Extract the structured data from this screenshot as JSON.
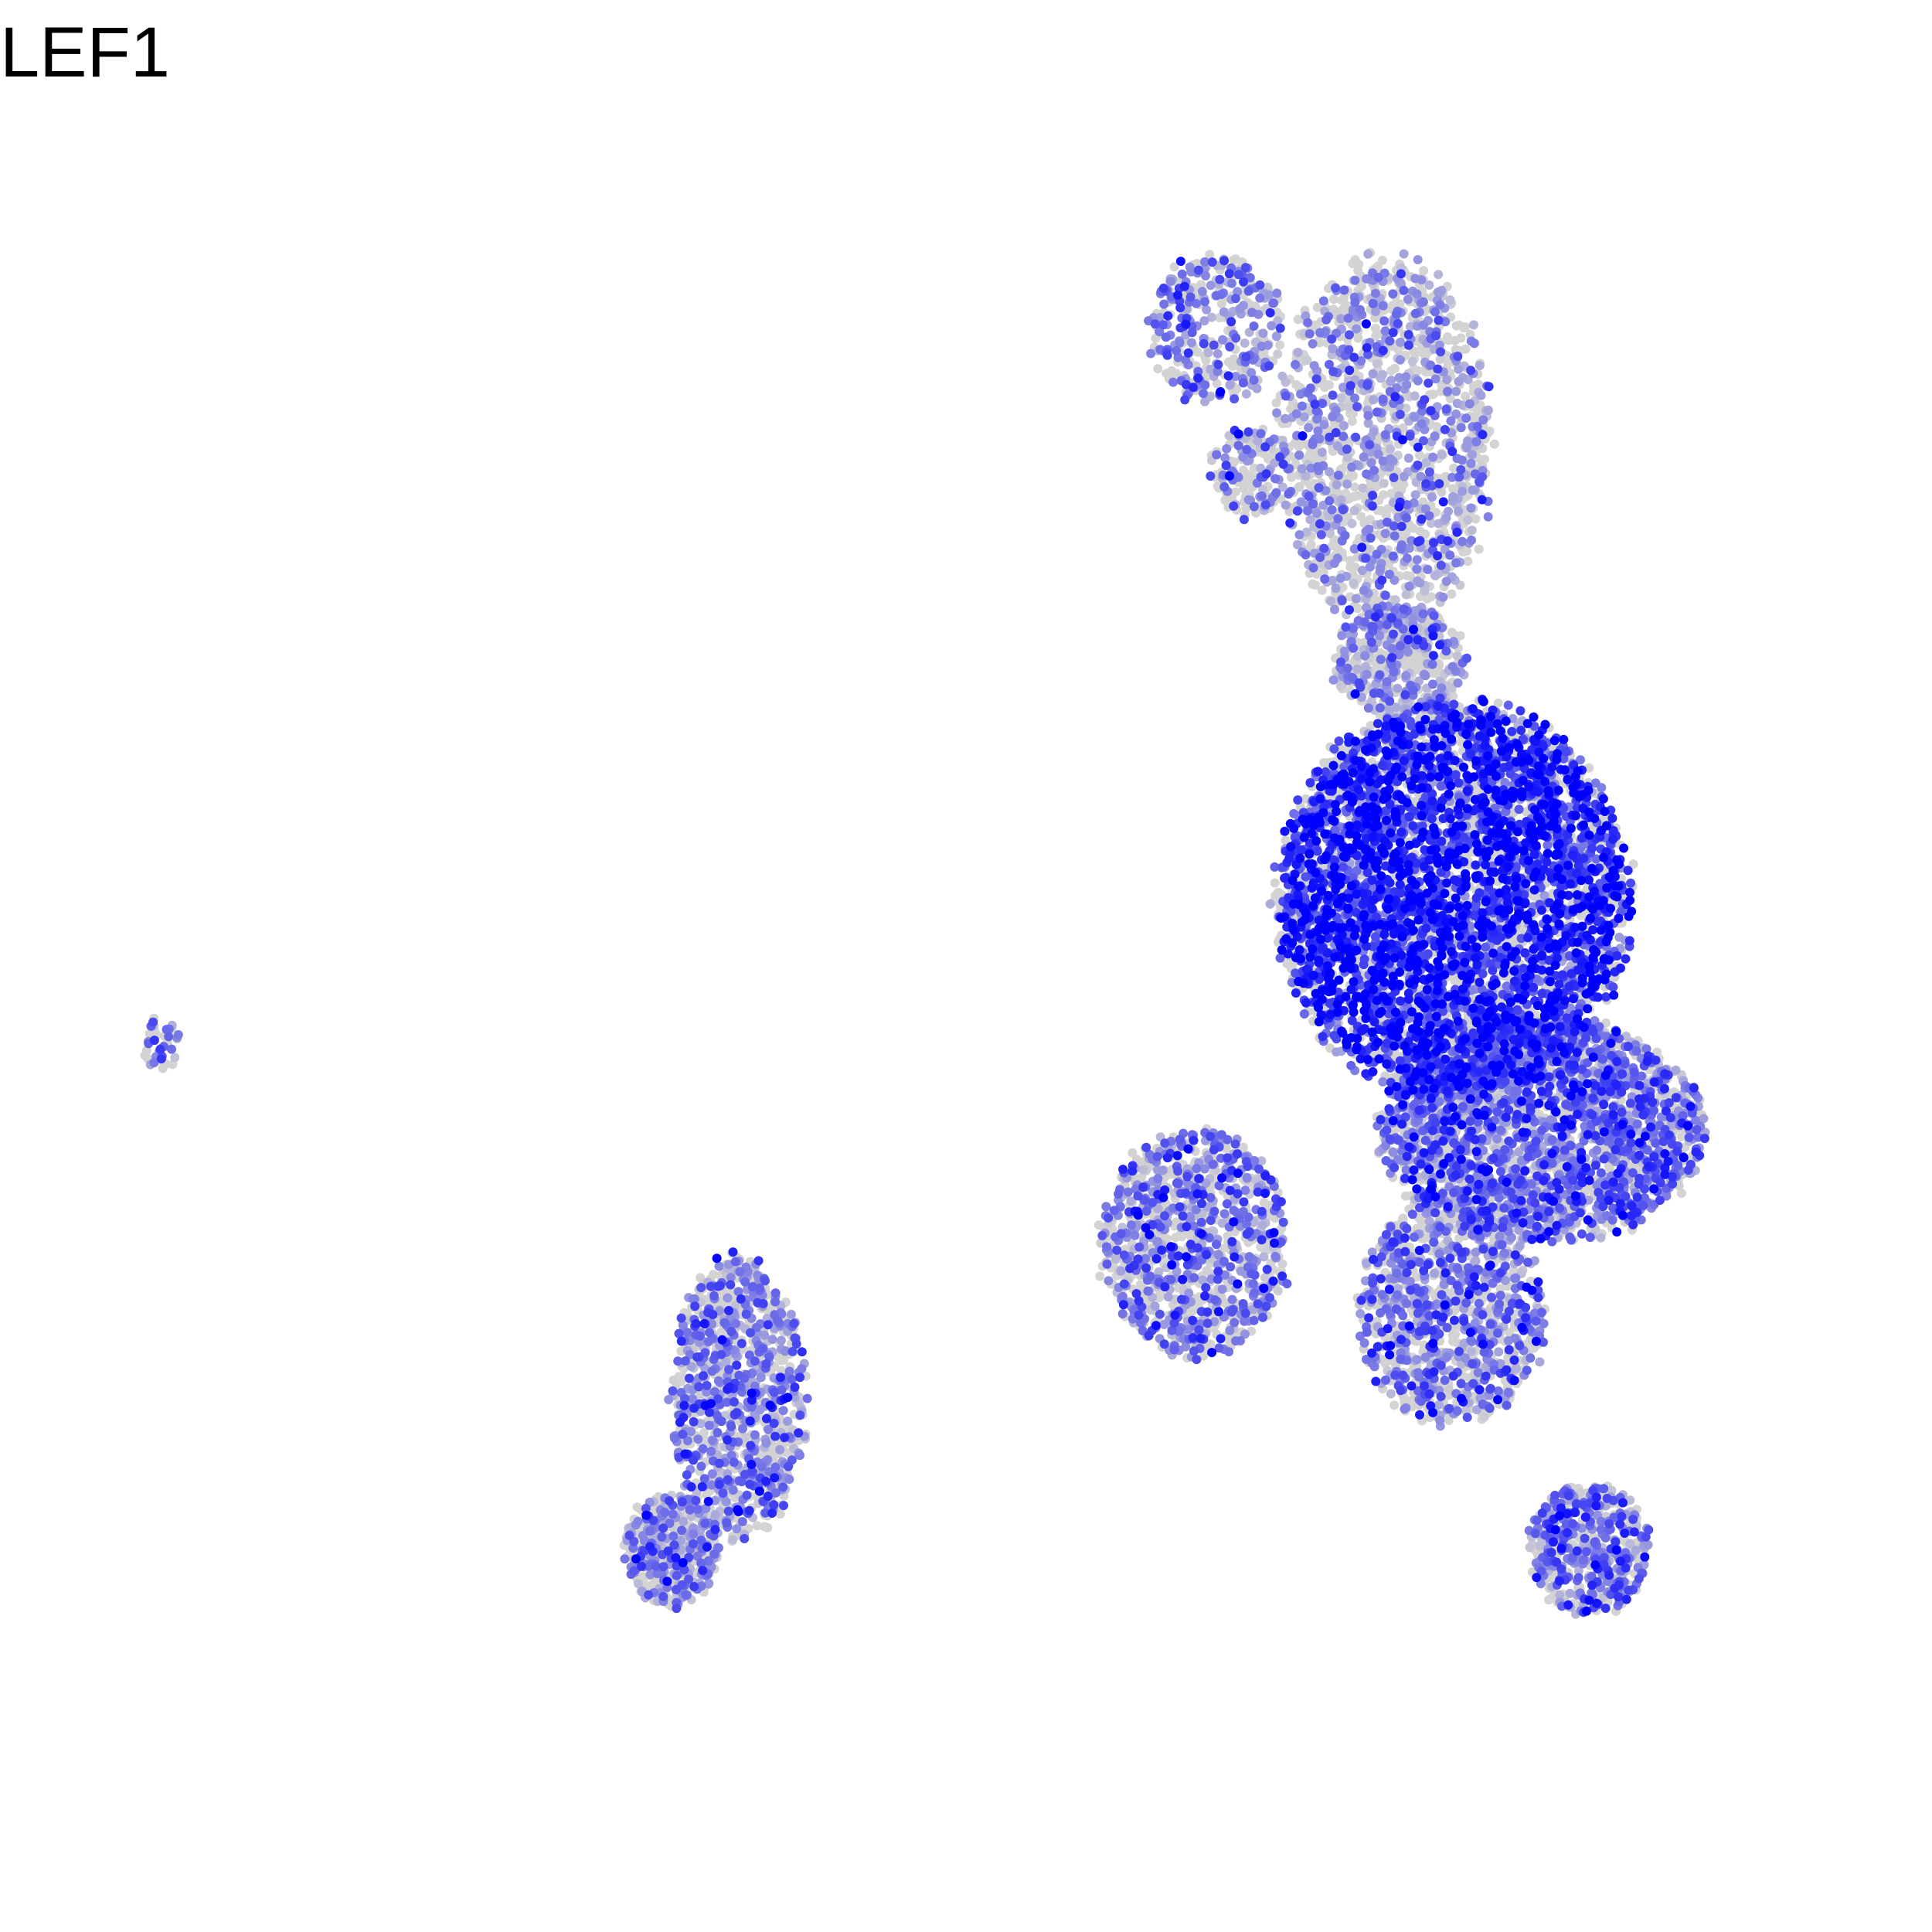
{
  "chart_data": {
    "type": "scatter",
    "title": "LEF1",
    "xlabel": "",
    "ylabel": "",
    "axes_visible": false,
    "grid": false,
    "legend": "none",
    "colors": {
      "low": "#d3d3d3",
      "high": "#0000ff",
      "background": "#ffffff"
    },
    "clusters": [
      {
        "cx": 0.7,
        "cy": 0.8,
        "rx": 0.26,
        "ry": 0.21,
        "n": 5200,
        "expr_mean": 0.75
      },
      {
        "cx": 0.83,
        "cy": 0.56,
        "rx": 0.24,
        "ry": 0.12,
        "n": 2600,
        "expr_mean": 0.45
      },
      {
        "cx": 0.32,
        "cy": 0.44,
        "rx": 0.14,
        "ry": 0.12,
        "n": 1100,
        "expr_mean": 0.35
      },
      {
        "cx": 0.9,
        "cy": 0.12,
        "rx": 0.09,
        "ry": 0.07,
        "n": 550,
        "expr_mean": 0.4
      },
      {
        "cx": 0.7,
        "cy": 0.37,
        "rx": 0.14,
        "ry": 0.12,
        "n": 1100,
        "expr_mean": 0.35
      },
      {
        "cx": -0.35,
        "cy": 0.28,
        "rx": 0.1,
        "ry": 0.15,
        "n": 1100,
        "expr_mean": 0.3
      },
      {
        "cx": -0.45,
        "cy": 0.12,
        "rx": 0.07,
        "ry": 0.06,
        "n": 450,
        "expr_mean": 0.3
      },
      {
        "cx": 0.35,
        "cy": 1.4,
        "rx": 0.1,
        "ry": 0.08,
        "n": 350,
        "expr_mean": 0.35
      },
      {
        "cx": 0.4,
        "cy": 1.25,
        "rx": 0.06,
        "ry": 0.05,
        "n": 150,
        "expr_mean": 0.3
      },
      {
        "cx": 0.6,
        "cy": 1.28,
        "rx": 0.16,
        "ry": 0.2,
        "n": 1500,
        "expr_mean": 0.2
      },
      {
        "cx": 0.62,
        "cy": 1.05,
        "rx": 0.1,
        "ry": 0.06,
        "n": 500,
        "expr_mean": 0.2
      },
      {
        "cx": -1.2,
        "cy": 0.65,
        "rx": 0.03,
        "ry": 0.03,
        "n": 40,
        "expr_mean": 0.35
      }
    ],
    "xlim": [
      -1.3,
      1.2
    ],
    "ylim": [
      -0.2,
      1.55
    ]
  }
}
